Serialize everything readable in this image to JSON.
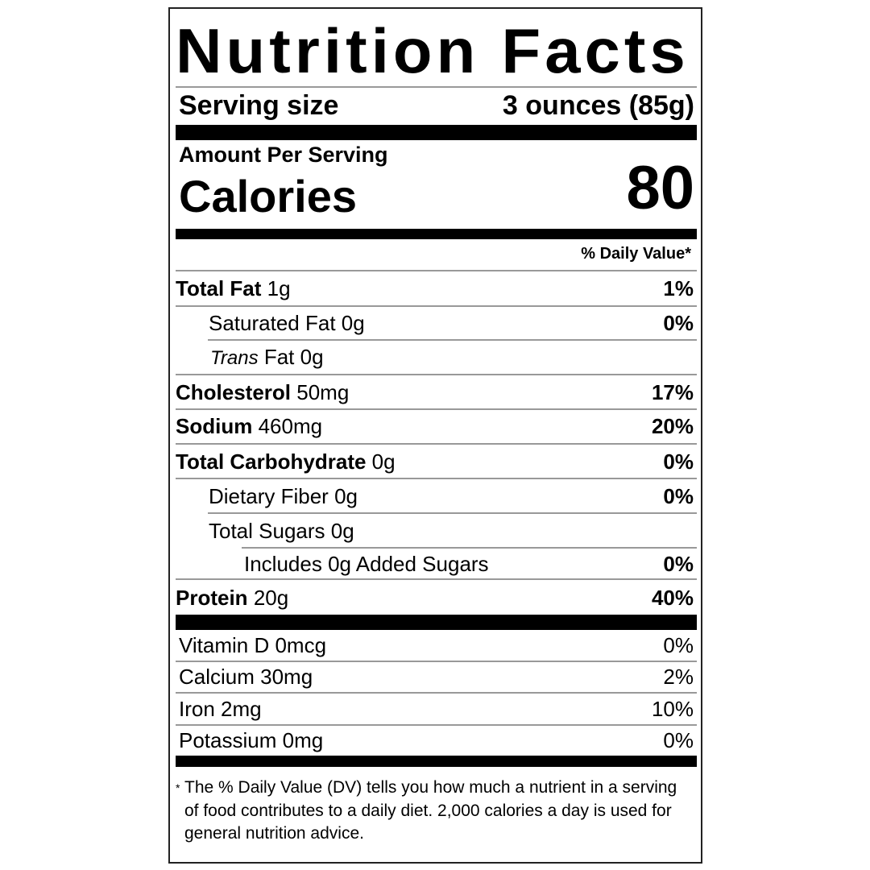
{
  "title": "Nutrition Facts",
  "serving": {
    "label": "Serving size",
    "value": "3 ounces (85g)"
  },
  "amount_per_serving": "Amount Per Serving",
  "calories": {
    "label": "Calories",
    "value": "80"
  },
  "daily_value_header": "% Daily Value*",
  "nutrients": [
    {
      "name": "Total Fat",
      "amount": "1g",
      "dv": "1%"
    },
    {
      "name": "Saturated Fat",
      "amount": "0g",
      "dv": "0%"
    },
    {
      "name": "Trans",
      "name_rest": "Fat",
      "amount": "0g",
      "dv": ""
    },
    {
      "name": "Cholesterol",
      "amount": "50mg",
      "dv": "17%"
    },
    {
      "name": "Sodium",
      "amount": "460mg",
      "dv": "20%"
    },
    {
      "name": "Total Carbohydrate",
      "amount": "0g",
      "dv": "0%"
    },
    {
      "name": "Dietary Fiber",
      "amount": "0g",
      "dv": "0%"
    },
    {
      "name": "Total Sugars",
      "amount": "0g",
      "dv": ""
    },
    {
      "name": "Includes 0g Added Sugars",
      "amount": "",
      "dv": "0%"
    },
    {
      "name": "Protein",
      "amount": "20g",
      "dv": "40%"
    }
  ],
  "vitamins": [
    {
      "label": "Vitamin D 0mcg",
      "dv": "0%"
    },
    {
      "label": "Calcium 30mg",
      "dv": "2%"
    },
    {
      "label": "Iron 2mg",
      "dv": "10%"
    },
    {
      "label": "Potassium 0mg",
      "dv": "0%"
    }
  ],
  "footnote": {
    "marker": "*",
    "text": "The % Daily Value (DV) tells you how much a nutrient in a serving of food contributes to a daily diet. 2,000 calories a day is used for general nutrition advice."
  }
}
